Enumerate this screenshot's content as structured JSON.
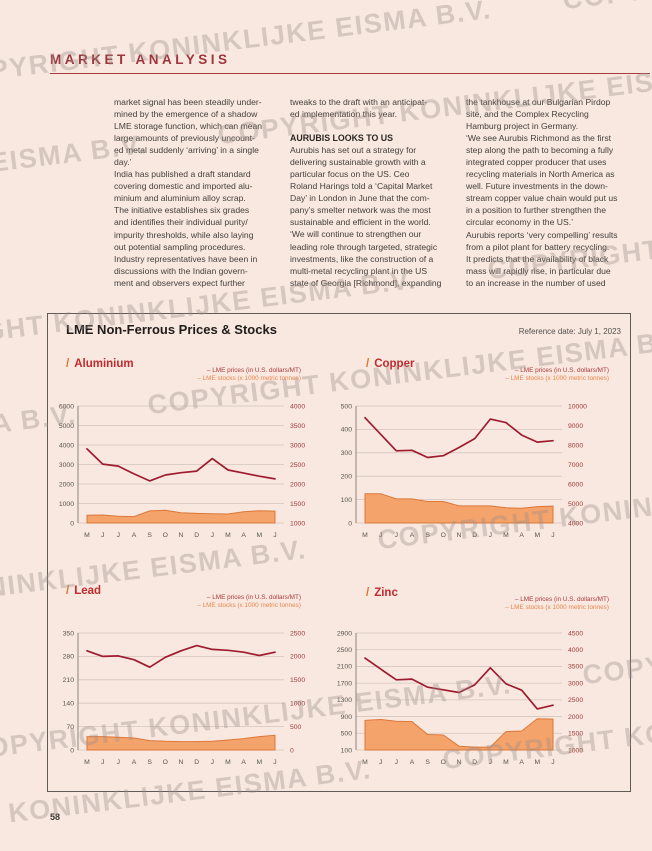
{
  "page": {
    "masthead": "MARKET ANALYSIS",
    "page_number": "58",
    "watermark_text": "COPYRIGHT KONINKLIJKE EISMA B.V."
  },
  "article": {
    "col1": "market signal has been steadily under-\nmined by the emergence of a shadow\nLME storage function, which can mean\nlarge amounts of previously uncount-\ned metal suddenly ‘arriving’ in a single\nday.’\nIndia has published a draft standard\ncovering domestic and imported alu-\nminium and aluminium alloy scrap.\nThe initiative establishes six grades\nand identifies their individual purity/\nimpurity thresholds, while also laying\nout potential sampling procedures.\nIndustry representatives have been in\ndiscussions with the Indian govern-\nment and observers expect further",
    "col2_para1": "tweaks to the draft with an anticipat-\ned implementation this year.",
    "col2_heading": "AURUBIS LOOKS TO US",
    "col2_para2": "Aurubis has set out a strategy for\ndelivering sustainable growth with a\nparticular focus on the US. Ceo\nRoland Harings told a ‘Capital Market\nDay’ in London in June that the com-\npany’s smelter network was the most\nsustainable and efficient in the world.\n‘We will continue to strengthen our\nleading role through targeted, strategic\ninvestments, like the construction of a\nmulti-metal recycling plant in the US\nstate of Georgia [Richmond], expanding",
    "col3": "the tankhouse at our Bulgarian Pirdop\nsite, and the Complex Recycling\nHamburg project in Germany.\n‘We see Aurubis Richmond as the first\nstep along the path to becoming a fully\nintegrated copper producer that uses\nrecycling materials in North America as\nwell. Future investments in the down-\nstream copper value chain would put us\nin a position to further strengthen the\ncircular economy in the US.’\nAurubis reports ‘very compelling’ results\nfrom a pilot plant for battery recycling.\nIt predicts that the availability of black\nmass will rapidly rise, in particular due\nto an increase in the number of used"
  },
  "panel": {
    "title": "LME Non-Ferrous Prices & Stocks",
    "reference_date": "Reference date: July 1, 2023",
    "title_prefix": "/"
  },
  "style": {
    "page_bg": "#f8e8e0",
    "masthead_red": "#9e353b",
    "chart_title_red": "#c02b2f",
    "slash_orange": "#e2762f",
    "price_line": "#9e1c2f",
    "price_text": "#a43b3c",
    "stocks_fill": "#f4a36b",
    "stocks_stroke": "#dd7738",
    "grid": "#d5c6bd",
    "axis_line": "#8c8580",
    "axis_text": "#5a544f",
    "watermark_gray": "#988e87"
  },
  "chart_data": [
    {
      "id": "aluminium",
      "type": "line",
      "title": "Aluminium",
      "legend": [
        "– LME prices (in U.S. dollars/MT)",
        "– LME stocks (x 1000 metric tonnes)"
      ],
      "x_labels": [
        "M",
        "J",
        "J",
        "A",
        "S",
        "O",
        "N",
        "D",
        "J",
        "M",
        "A",
        "M",
        "J"
      ],
      "left_axis": {
        "title": "LME stocks (x 1000 metric tonnes)",
        "ticks": [
          6000,
          5000,
          4000,
          3000,
          2000,
          1000,
          0
        ],
        "min": 0,
        "max": 6000
      },
      "right_axis": {
        "title": "LME prices (in U.S. dollars/MT)",
        "ticks": [
          4000,
          3500,
          3000,
          2500,
          2000,
          1500,
          1000
        ],
        "min": 1000,
        "max": 4000
      },
      "series": [
        {
          "name": "LME prices",
          "axis": "right",
          "values": [
            2900,
            2510,
            2460,
            2260,
            2080,
            2230,
            2290,
            2330,
            2650,
            2360,
            2280,
            2200,
            2130
          ]
        },
        {
          "name": "LME stocks",
          "axis": "left",
          "values": [
            400,
            410,
            350,
            330,
            620,
            650,
            530,
            490,
            470,
            460,
            580,
            630,
            610
          ]
        }
      ]
    },
    {
      "id": "copper",
      "type": "line",
      "title": "Copper",
      "legend": [
        "– LME prices (in U.S. dollars/MT)",
        "– LME stocks (x 1000 metric tonnes)"
      ],
      "x_labels": [
        "M",
        "J",
        "J",
        "A",
        "S",
        "O",
        "N",
        "D",
        "J",
        "M",
        "A",
        "M",
        "J"
      ],
      "left_axis": {
        "title": "LME stocks (x 1000 metric tonnes)",
        "ticks": [
          500,
          400,
          300,
          200,
          100,
          0
        ],
        "min": 0,
        "max": 500
      },
      "right_axis": {
        "title": "LME prices (in U.S. dollars/MT)",
        "ticks": [
          10000,
          9000,
          8000,
          7000,
          6000,
          5000,
          4000
        ],
        "min": 4000,
        "max": 10000
      },
      "series": [
        {
          "name": "LME prices",
          "axis": "right",
          "values": [
            9400,
            8550,
            7700,
            7730,
            7360,
            7450,
            7870,
            8330,
            9330,
            9150,
            8510,
            8150,
            8220
          ]
        },
        {
          "name": "LME stocks",
          "axis": "left",
          "values": [
            125,
            125,
            103,
            103,
            92,
            92,
            73,
            73,
            73,
            65,
            63,
            70,
            72
          ]
        }
      ]
    },
    {
      "id": "lead",
      "type": "line",
      "title": "Lead",
      "legend": [
        "– LME prices (in U.S. dollars/MT)",
        "– LME stocks (x 1000 metric tonnes)"
      ],
      "x_labels": [
        "M",
        "J",
        "J",
        "A",
        "S",
        "O",
        "N",
        "D",
        "J",
        "M",
        "A",
        "M",
        "J"
      ],
      "left_axis": {
        "title": "LME stocks (x 1000 metric tonnes)",
        "ticks": [
          350,
          280,
          210,
          140,
          70,
          0
        ],
        "min": 0,
        "max": 350
      },
      "right_axis": {
        "title": "LME prices (in U.S. dollars/MT)",
        "ticks": [
          2500,
          2000,
          1500,
          1000,
          500,
          0
        ],
        "min": 0,
        "max": 2500
      },
      "series": [
        {
          "name": "LME prices",
          "axis": "right",
          "values": [
            2120,
            2000,
            2010,
            1930,
            1770,
            1980,
            2120,
            2230,
            2150,
            2130,
            2090,
            2020,
            2090
          ]
        },
        {
          "name": "LME stocks",
          "axis": "left",
          "values": [
            40,
            40,
            38,
            36,
            28,
            26,
            25,
            25,
            26,
            30,
            34,
            40,
            44
          ]
        }
      ]
    },
    {
      "id": "zinc",
      "type": "line",
      "title": "Zinc",
      "legend": [
        "– LME prices (in U.S. dollars/MT)",
        "– LME stocks (x 1000 metric tonnes)"
      ],
      "x_labels": [
        "M",
        "J",
        "J",
        "A",
        "S",
        "O",
        "N",
        "D",
        "J",
        "M",
        "A",
        "M",
        "J"
      ],
      "left_axis": {
        "title": "LME stocks (x 1000 metric tonnes)",
        "ticks": [
          2900,
          2500,
          2100,
          1700,
          1300,
          900,
          500,
          100
        ],
        "min": 100,
        "max": 2900
      },
      "right_axis": {
        "title": "LME prices (in U.S. dollars/MT)",
        "ticks": [
          4500,
          4000,
          3500,
          3000,
          2500,
          2000,
          1500,
          1000
        ],
        "min": 1000,
        "max": 4500
      },
      "series": [
        {
          "name": "LME prices",
          "axis": "right",
          "values": [
            3750,
            3420,
            3100,
            3120,
            2880,
            2800,
            2720,
            2950,
            3460,
            2980,
            2790,
            2230,
            2340
          ]
        },
        {
          "name": "LME stocks",
          "axis": "left",
          "values": [
            810,
            830,
            790,
            780,
            470,
            460,
            190,
            170,
            170,
            540,
            555,
            850,
            840
          ]
        }
      ]
    }
  ]
}
